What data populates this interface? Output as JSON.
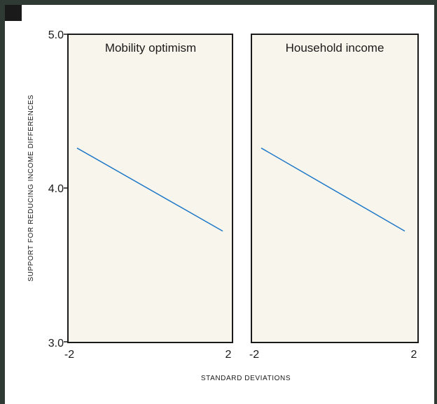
{
  "chart_data": {
    "type": "line",
    "ylabel": "SUPPORT FOR REDUCING INCOME DIFFERENCES",
    "xlabel": "STANDARD DEVIATIONS",
    "ylim": [
      3.0,
      5.0
    ],
    "yticks": [
      "5.0",
      "4.0",
      "3.0"
    ],
    "xlim": [
      -2,
      2
    ],
    "xticks": [
      "-2",
      "2"
    ],
    "grid": false,
    "colors": {
      "line": "#1f78c8",
      "panel_fill": "#f8f6ec",
      "frame": "#1a1a1a"
    },
    "panels": [
      {
        "title": "Mobility optimism",
        "x": [
          -2,
          2
        ],
        "y": [
          4.26,
          3.72
        ]
      },
      {
        "title": "Household income",
        "x": [
          -2,
          2
        ],
        "y": [
          4.26,
          3.72
        ]
      }
    ]
  }
}
